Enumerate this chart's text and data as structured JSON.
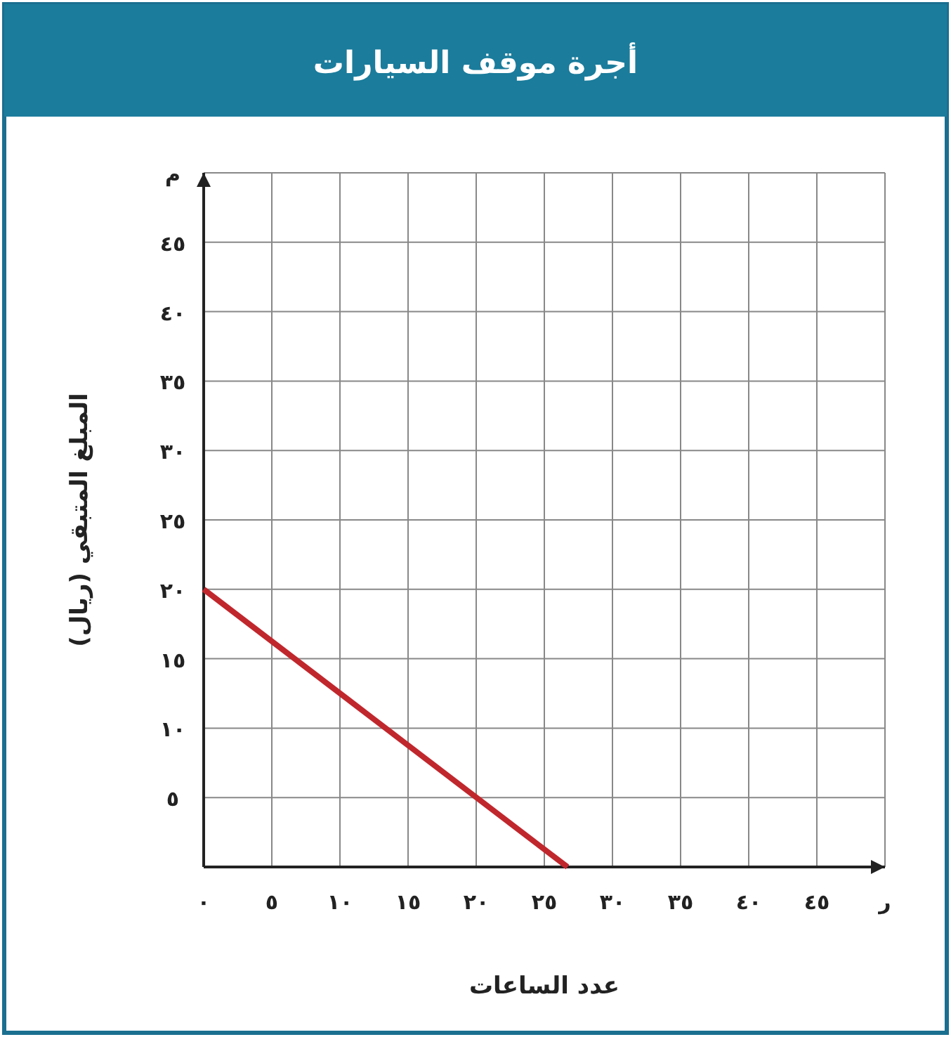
{
  "chart_data": {
    "type": "line",
    "title": "أجرة موقف السيارات",
    "xlabel": "عدد الساعات",
    "ylabel": "المبلغ المتبقي (ريال)",
    "x": [
      0,
      26.7
    ],
    "series": [
      {
        "color": "#c0272d",
        "values": [
          20,
          0
        ]
      }
    ],
    "xlim": [
      0,
      50
    ],
    "ylim": [
      0,
      50
    ],
    "xticks": [
      {
        "value": 0,
        "label": "٠"
      },
      {
        "value": 5,
        "label": "٥"
      },
      {
        "value": 10,
        "label": "١٠"
      },
      {
        "value": 15,
        "label": "١٥"
      },
      {
        "value": 20,
        "label": "٢٠"
      },
      {
        "value": 25,
        "label": "٢٥"
      },
      {
        "value": 30,
        "label": "٣٠"
      },
      {
        "value": 35,
        "label": "٣٥"
      },
      {
        "value": 40,
        "label": "٤٠"
      },
      {
        "value": 45,
        "label": "٤٥"
      },
      {
        "value": 50,
        "label": "ر"
      }
    ],
    "yticks": [
      {
        "value": 5,
        "label": "٥"
      },
      {
        "value": 10,
        "label": "١٠"
      },
      {
        "value": 15,
        "label": "١٥"
      },
      {
        "value": 20,
        "label": "٢٠"
      },
      {
        "value": 25,
        "label": "٢٥"
      },
      {
        "value": 30,
        "label": "٣٠"
      },
      {
        "value": 35,
        "label": "٣٥"
      },
      {
        "value": 40,
        "label": "٤٠"
      },
      {
        "value": 45,
        "label": "٤٥"
      },
      {
        "value": 50,
        "label": "م"
      }
    ],
    "grid": true,
    "marker": "none",
    "line_style": "solid"
  }
}
